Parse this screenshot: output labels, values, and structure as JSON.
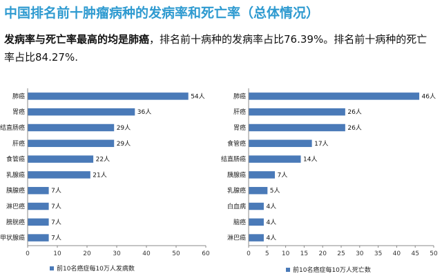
{
  "page": {
    "title": "中国排名前十肿瘤病种的发病率和死亡率（总体情况）",
    "summary_lead": "发病率与死亡率最高的均是肺癌",
    "summary_rest": "，排名前十病种的发病率占比76.39%。排名前十病种的死亡率占比84.27%."
  },
  "chart_data": [
    {
      "type": "bar",
      "orientation": "horizontal",
      "categories": [
        "肺癌",
        "胃癌",
        "结直肠癌",
        "肝癌",
        "食管癌",
        "乳腺癌",
        "胰腺癌",
        "淋巴癌",
        "膀胱癌",
        "甲状腺癌"
      ],
      "values": [
        54,
        36,
        29,
        29,
        22,
        21,
        7,
        7,
        7,
        7
      ],
      "value_labels": [
        "54人",
        "36人",
        "29人",
        "29人",
        "22人",
        "21人",
        "7人",
        "7人",
        "7人",
        "7人"
      ],
      "xlim": [
        0,
        60
      ],
      "xticks": [
        "0",
        "10",
        "20",
        "30",
        "40",
        "50",
        "60"
      ],
      "series_name": "前10名癌症每10万人发病数",
      "legend_position": "bottom",
      "color": "#4a7ab8"
    },
    {
      "type": "bar",
      "orientation": "horizontal",
      "categories": [
        "肺癌",
        "肝癌",
        "胃癌",
        "食管癌",
        "结直肠癌",
        "胰腺癌",
        "乳腺癌",
        "白血病",
        "脑癌",
        "淋巴癌"
      ],
      "values": [
        46,
        26,
        26,
        17,
        14,
        7,
        5,
        4,
        4,
        4
      ],
      "value_labels": [
        "46人",
        "26人",
        "26人",
        "17人",
        "14人",
        "7人",
        "5人",
        "4人",
        "4人",
        "4人"
      ],
      "xlim": [
        0,
        50
      ],
      "xticks": [
        "0",
        "5",
        "10",
        "15",
        "20",
        "25",
        "30",
        "35",
        "40",
        "45",
        "50"
      ],
      "series_name": "前10名癌症每10万人死亡数",
      "legend_position": "bottom",
      "color": "#4a7ab8"
    }
  ]
}
